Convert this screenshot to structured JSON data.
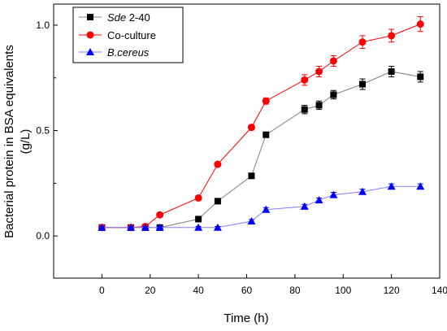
{
  "chart_data": {
    "type": "line",
    "title": "",
    "xlabel": "Time (h)",
    "ylabel_line1": "Bacterial protein in BSA equivalents",
    "ylabel_line2": "(g/L)",
    "xlim": [
      -20,
      140
    ],
    "ylim": [
      -0.2,
      1.1
    ],
    "xticks": [
      0,
      20,
      40,
      60,
      80,
      100,
      120,
      140
    ],
    "yticks": [
      0.0,
      0.5,
      1.0
    ],
    "ytick_labels": [
      "0.0",
      "0.5",
      "1.0"
    ],
    "grid": false,
    "legend_position": "top-left",
    "series": [
      {
        "name": "Sde 2-40",
        "name_italic": "Sde",
        "name_rest": " 2-40",
        "color": "#000000",
        "line_color": "#808080",
        "marker": "square",
        "x": [
          0,
          12,
          18,
          24,
          40,
          48,
          62,
          68,
          84,
          90,
          96,
          108,
          120,
          132
        ],
        "y": [
          0.04,
          0.04,
          0.04,
          0.04,
          0.08,
          0.165,
          0.285,
          0.48,
          0.6,
          0.62,
          0.67,
          0.72,
          0.78,
          0.755
        ],
        "err": [
          0.008,
          0.008,
          0.008,
          0.008,
          0.01,
          0.012,
          0.012,
          0.012,
          0.02,
          0.02,
          0.02,
          0.025,
          0.025,
          0.025
        ]
      },
      {
        "name": "Co-culture",
        "color": "#ff0000",
        "line_color": "#ff0000",
        "marker": "circle",
        "x": [
          0,
          12,
          18,
          24,
          40,
          48,
          62,
          68,
          84,
          90,
          96,
          108,
          120,
          132
        ],
        "y": [
          0.04,
          0.04,
          0.045,
          0.1,
          0.18,
          0.34,
          0.515,
          0.64,
          0.74,
          0.78,
          0.83,
          0.92,
          0.95,
          1.005
        ],
        "err": [
          0.008,
          0.008,
          0.008,
          0.01,
          0.01,
          0.01,
          0.012,
          0.015,
          0.025,
          0.025,
          0.025,
          0.03,
          0.03,
          0.035
        ]
      },
      {
        "name": "B.cereus",
        "name_italic": "B.cereus",
        "name_rest": "",
        "color": "#0000ff",
        "line_color": "#8080ff",
        "marker": "triangle",
        "x": [
          0,
          12,
          18,
          24,
          40,
          48,
          62,
          68,
          84,
          90,
          96,
          108,
          120,
          132
        ],
        "y": [
          0.04,
          0.04,
          0.04,
          0.04,
          0.04,
          0.04,
          0.07,
          0.125,
          0.14,
          0.17,
          0.195,
          0.21,
          0.235,
          0.235
        ],
        "err": [
          0.005,
          0.005,
          0.005,
          0.005,
          0.005,
          0.005,
          0.008,
          0.01,
          0.01,
          0.01,
          0.012,
          0.012,
          0.012,
          0.012
        ]
      }
    ]
  }
}
